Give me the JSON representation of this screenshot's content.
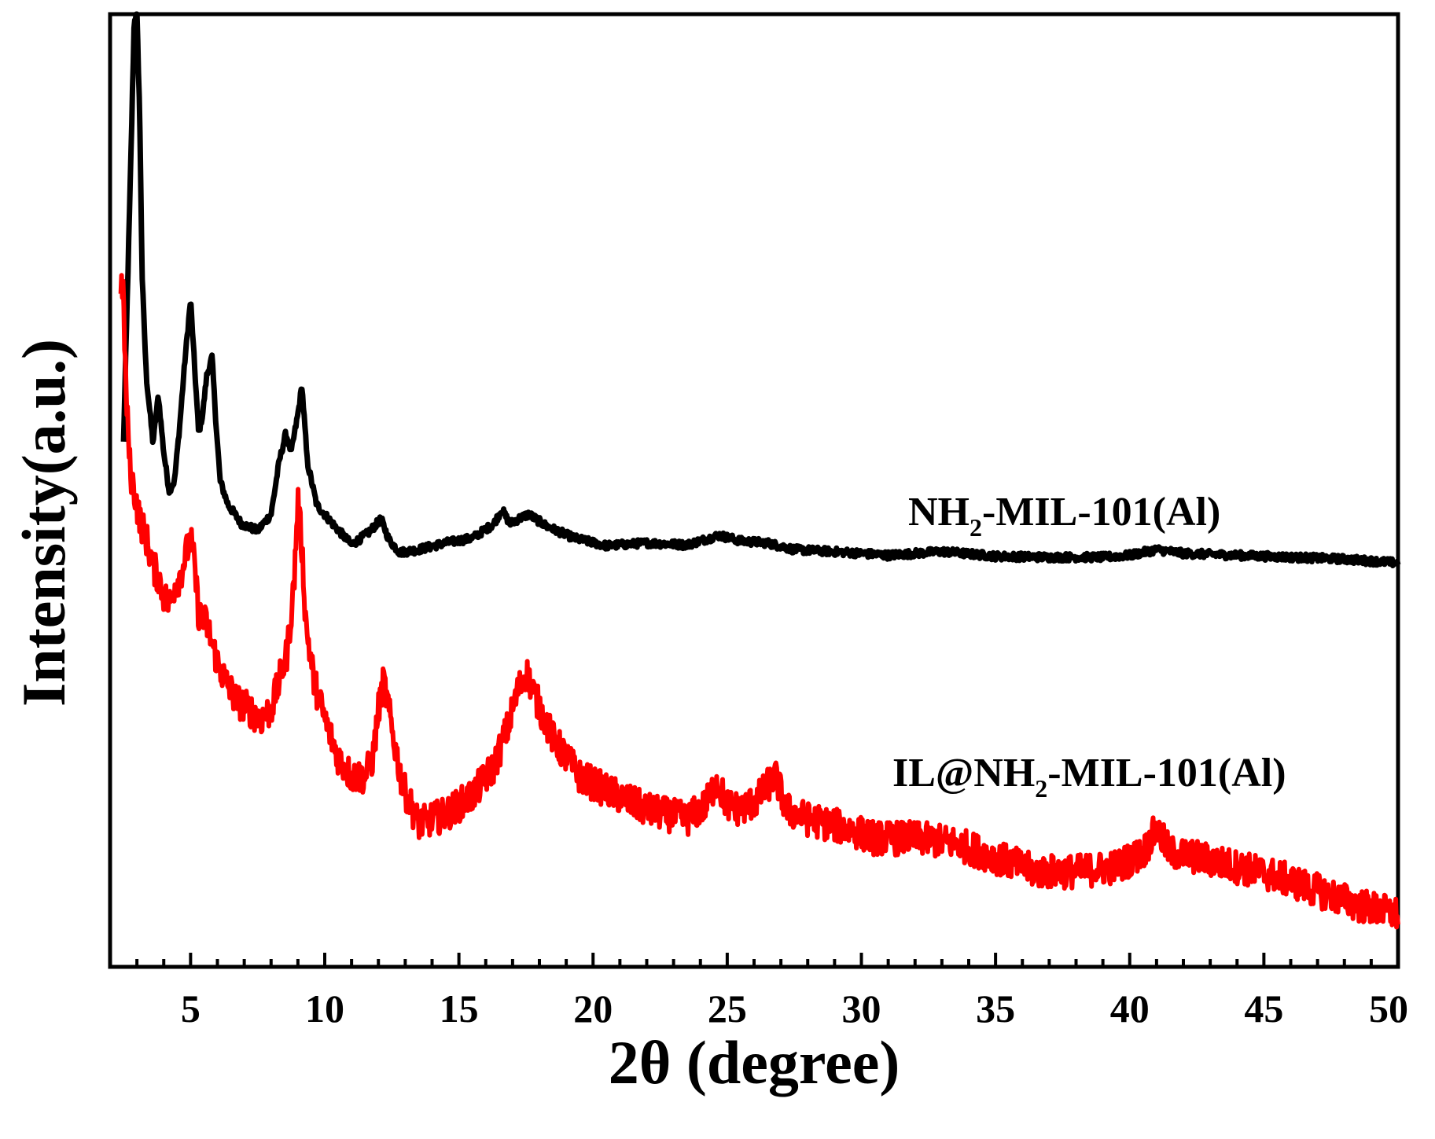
{
  "chart_data": {
    "type": "line",
    "xlabel": "2θ (degree)",
    "ylabel": "Intensity(a.u.)",
    "xlim": [
      2,
      50
    ],
    "ylim": [
      0,
      100
    ],
    "x_ticks": [
      5,
      10,
      15,
      20,
      25,
      30,
      35,
      40,
      45,
      50
    ],
    "y_ticks_shown": false,
    "grid": false,
    "legend": "inline labels",
    "series": [
      {
        "name": "NH2-MIL-101(Al)",
        "label_main": "NH",
        "label_sub": "2",
        "label_rest": "-MIL-101(Al)",
        "color": "#000000",
        "noise": 0.4,
        "x": [
          2.5,
          2.75,
          2.9,
          3.0,
          3.1,
          3.2,
          3.35,
          3.6,
          3.8,
          4.0,
          4.2,
          4.4,
          4.6,
          4.8,
          5.0,
          5.15,
          5.3,
          5.45,
          5.6,
          5.8,
          5.95,
          6.1,
          6.4,
          6.9,
          7.5,
          8.0,
          8.3,
          8.55,
          8.75,
          9.0,
          9.15,
          9.35,
          9.7,
          10.3,
          11.0,
          11.6,
          12.1,
          12.4,
          12.8,
          13.5,
          14.5,
          15.5,
          16.3,
          16.6,
          16.9,
          17.2,
          17.6,
          18.3,
          19.3,
          20.5,
          22.0,
          23.5,
          24.7,
          25.5,
          26.5,
          27.5,
          29.5,
          31.0,
          33.0,
          35.0,
          37.0,
          39.0,
          40.0,
          41.0,
          42.0,
          44.0,
          46.0,
          48.0,
          50.0
        ],
        "y": [
          55,
          82,
          99.5,
          100,
          90,
          72,
          62,
          55,
          60,
          54,
          50,
          51,
          57,
          64,
          70,
          63,
          56,
          58,
          62,
          64,
          57,
          51,
          48.5,
          46.5,
          45.8,
          47.5,
          53,
          56,
          54,
          58,
          61,
          53,
          48.5,
          46.5,
          44.3,
          45.5,
          47,
          44.8,
          43.5,
          43.8,
          44.5,
          45,
          46.5,
          48,
          46.5,
          47,
          47.5,
          46.2,
          45,
          44.2,
          44.5,
          44.3,
          45.3,
          44.7,
          44.5,
          43.8,
          43.5,
          43.2,
          43.6,
          43.1,
          43,
          43,
          43.2,
          43.8,
          43.4,
          43.2,
          43,
          42.8,
          42.4
        ]
      },
      {
        "name": "IL@NH2-MIL-101(Al)",
        "label_main": "IL@NH",
        "label_sub": "2",
        "label_rest": "-MIL-101(Al)",
        "color": "#ff0000",
        "noise": 1.8,
        "x": [
          2.4,
          2.5,
          2.6,
          2.75,
          2.9,
          3.1,
          3.35,
          3.6,
          3.8,
          4.0,
          4.2,
          4.4,
          4.6,
          4.8,
          5.0,
          5.15,
          5.3,
          5.6,
          5.8,
          6.0,
          6.3,
          6.7,
          7.2,
          7.6,
          8.0,
          8.3,
          8.6,
          8.85,
          9.0,
          9.15,
          9.3,
          9.6,
          10.0,
          10.5,
          11.0,
          11.5,
          11.8,
          12.0,
          12.2,
          12.5,
          12.9,
          13.5,
          14.5,
          15.5,
          16.3,
          16.8,
          17.2,
          17.5,
          17.9,
          18.5,
          19.5,
          20.5,
          22.0,
          23.5,
          24.2,
          24.6,
          25.0,
          25.5,
          26.1,
          26.5,
          26.8,
          27.2,
          28.0,
          29.5,
          30.5,
          32.0,
          33.5,
          35.0,
          36.5,
          38.0,
          39.5,
          40.5,
          41.0,
          41.5,
          42.5,
          44.0,
          45.5,
          47.0,
          48.5,
          50.0
        ],
        "y": [
          72,
          70,
          60,
          52,
          50,
          47,
          45,
          42,
          41,
          39,
          38,
          40,
          41,
          43,
          45,
          42,
          37,
          36,
          34,
          32,
          30,
          28,
          27,
          26,
          27,
          30,
          33,
          40,
          49,
          44,
          36,
          30,
          26,
          22,
          20,
          20,
          22,
          27,
          30,
          25,
          19,
          15,
          16,
          18,
          21,
          25,
          29,
          31,
          28,
          24,
          20,
          18.5,
          16.5,
          15.5,
          17,
          19.5,
          17,
          16.5,
          17.5,
          19,
          20,
          16.5,
          15.5,
          14.5,
          13.5,
          13.5,
          13,
          11.5,
          10,
          10,
          10.5,
          12,
          14.5,
          12,
          11.5,
          10.5,
          9.5,
          8,
          6.5,
          5.5
        ]
      }
    ]
  }
}
